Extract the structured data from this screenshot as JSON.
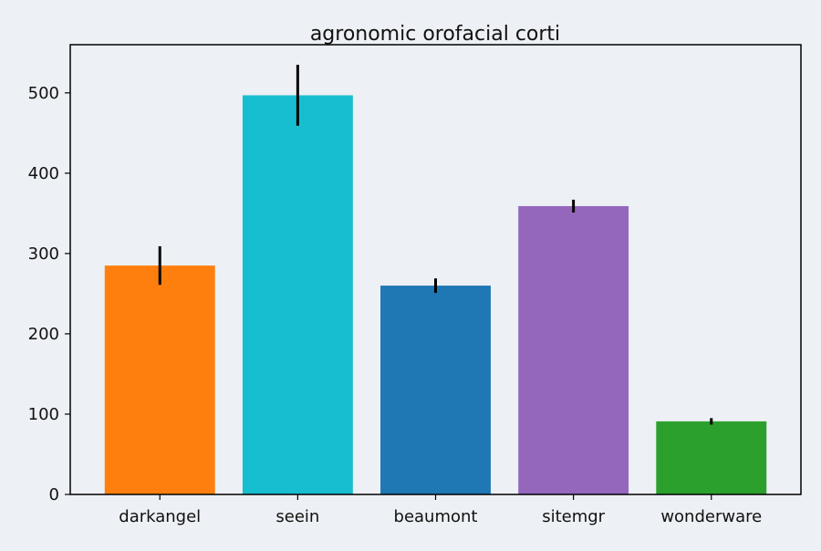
{
  "chart_data": {
    "type": "bar",
    "title": "agronomic orofacial corti",
    "xlabel": "",
    "ylabel": "",
    "categories": [
      "darkangel",
      "seein",
      "beaumont",
      "sitemgr",
      "wonderware"
    ],
    "values": [
      285,
      497,
      260,
      359,
      91
    ],
    "errors": [
      24,
      38,
      9,
      8,
      4
    ],
    "colors": [
      "#ff7f0e",
      "#17becf",
      "#1f77b4",
      "#9467bd",
      "#2ca02c"
    ],
    "error_color": "#000000",
    "ylim": [
      0,
      560
    ],
    "yticks": [
      0,
      100,
      200,
      300,
      400,
      500
    ],
    "grid": false,
    "legend": "none"
  }
}
